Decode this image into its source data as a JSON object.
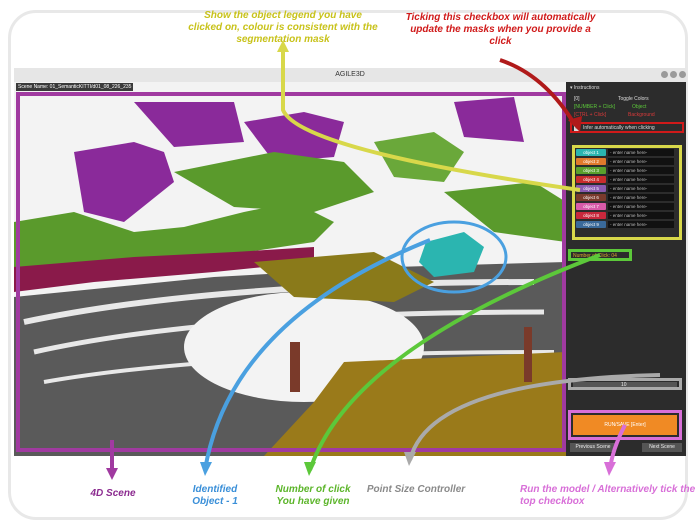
{
  "callouts": {
    "legend": "Show the object legend you have clicked on, colour is consistent with the segmentation mask",
    "checkbox": "Ticking this checkbox will automatically update the masks when you provide a click",
    "scene": "4D Scene",
    "identified": "Identified Object - 1",
    "clicks": "Number of click You have given",
    "point_size": "Point Size Controller",
    "run": "Run the model / Alternatively tick the top checkbox"
  },
  "app": {
    "title": "AGILE3D",
    "scene_name": "Scene Name: 01_SemanticKITTI/d01_08_226_235"
  },
  "panel": {
    "instructions_header": "▾ Instructions",
    "key_header": "[0]",
    "toggle_colors": "Toggle Colors",
    "click_key": "[NUMBER + Click]",
    "click_target": "Object",
    "ctrl_key": "[CTRL + Click]",
    "ctrl_target": "Background",
    "infer_label": "Infer automatically when clicking",
    "objects": [
      {
        "label": "object 1",
        "color": "#2bb5b0",
        "placeholder": "- enter name here-"
      },
      {
        "label": "object 2",
        "color": "#e07a2c",
        "placeholder": "- enter name here-"
      },
      {
        "label": "object 3",
        "color": "#5aa02c",
        "placeholder": "- enter name here-"
      },
      {
        "label": "object 4",
        "color": "#c82c2c",
        "placeholder": "- enter name here-"
      },
      {
        "label": "object 5",
        "color": "#8a5ab0",
        "placeholder": "- enter name here-"
      },
      {
        "label": "object 6",
        "color": "#7a3a2c",
        "placeholder": "- enter name here-"
      },
      {
        "label": "object 7",
        "color": "#d85aa8",
        "placeholder": "- enter name here-"
      },
      {
        "label": "object 8",
        "color": "#c8283c",
        "placeholder": "- enter name here-"
      },
      {
        "label": "object 9",
        "color": "#3a6a9a",
        "placeholder": "- enter name here-"
      }
    ],
    "num_clicks": "Number of Click: 04",
    "point_size": "10",
    "run_label": "RUN/SAVE [Enter]",
    "prev_scene": "Previous Scene",
    "next_scene": "Next Scene"
  },
  "colors": {
    "run_button": "#f08a24",
    "highlight_purple": "#a03aa0",
    "highlight_yellow": "#d8d84a",
    "highlight_blue": "#4aa0e0",
    "highlight_green": "#5cc83a",
    "highlight_red": "#d01a1a"
  }
}
